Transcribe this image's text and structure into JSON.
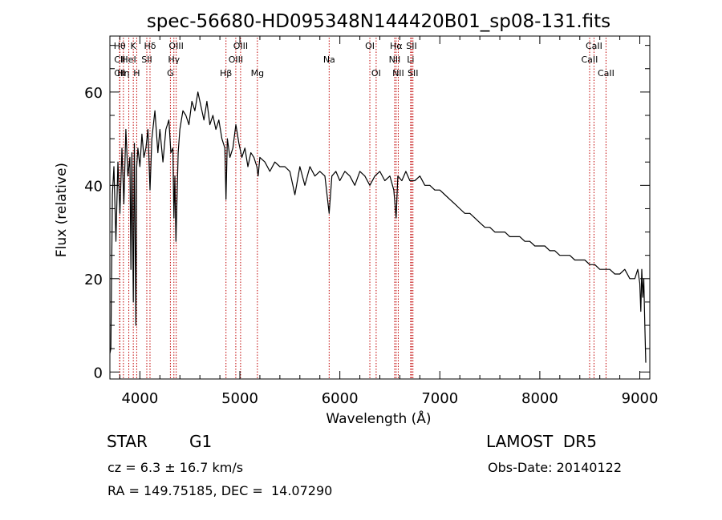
{
  "chart_data": {
    "type": "line",
    "title": "spec-56680-HD095348N144420B01_sp08-131.fits",
    "xlabel": "Wavelength (Å)",
    "ylabel": "Flux (relative)",
    "xlim": [
      3700,
      9100
    ],
    "ylim": [
      -1.5,
      72
    ],
    "x_ticks": [
      4000,
      5000,
      6000,
      7000,
      8000,
      9000
    ],
    "x_tick_labels": [
      "4000",
      "5000",
      "6000",
      "7000",
      "8000",
      "9000"
    ],
    "y_ticks": [
      0,
      20,
      40,
      60
    ],
    "y_tick_labels": [
      "0",
      "20",
      "40",
      "60"
    ],
    "grid": false,
    "series": [
      {
        "color": "#000000",
        "x": [
          3700,
          3710,
          3725,
          3740,
          3760,
          3780,
          3800,
          3820,
          3840,
          3860,
          3880,
          3900,
          3910,
          3920,
          3934,
          3945,
          3960,
          3968,
          3980,
          4000,
          4020,
          4040,
          4060,
          4080,
          4101,
          4120,
          4150,
          4180,
          4200,
          4230,
          4260,
          4290,
          4310,
          4330,
          4340,
          4350,
          4360,
          4383,
          4400,
          4430,
          4460,
          4490,
          4520,
          4550,
          4580,
          4610,
          4640,
          4670,
          4700,
          4730,
          4760,
          4790,
          4820,
          4850,
          4861,
          4875,
          4900,
          4930,
          4960,
          4990,
          5020,
          5050,
          5080,
          5110,
          5140,
          5170,
          5183,
          5200,
          5250,
          5300,
          5350,
          5400,
          5450,
          5500,
          5550,
          5600,
          5650,
          5700,
          5750,
          5800,
          5850,
          5893,
          5920,
          5960,
          6000,
          6050,
          6100,
          6150,
          6200,
          6250,
          6300,
          6350,
          6400,
          6450,
          6500,
          6540,
          6563,
          6580,
          6620,
          6660,
          6700,
          6750,
          6800,
          6850,
          6900,
          6950,
          7000,
          7050,
          7100,
          7150,
          7200,
          7250,
          7300,
          7350,
          7400,
          7450,
          7500,
          7550,
          7600,
          7650,
          7700,
          7750,
          7800,
          7850,
          7900,
          7950,
          8000,
          8050,
          8100,
          8150,
          8200,
          8250,
          8300,
          8350,
          8400,
          8450,
          8500,
          8550,
          8600,
          8650,
          8700,
          8750,
          8800,
          8850,
          8900,
          8950,
          8980,
          9000,
          9010,
          9020,
          9030,
          9040,
          9050,
          9060
        ],
        "y": [
          4,
          5,
          38,
          44,
          28,
          45,
          34,
          48,
          36,
          52,
          42,
          46,
          22,
          47,
          15,
          49,
          10,
          44,
          48,
          44,
          51,
          46,
          48,
          52,
          39,
          50,
          56,
          47,
          52,
          45,
          52,
          54,
          47,
          48,
          33,
          42,
          28,
          47,
          52,
          56,
          55,
          53,
          58,
          56,
          60,
          57,
          54,
          58,
          53,
          55,
          52,
          54,
          50,
          48,
          37,
          50,
          46,
          48,
          53,
          49,
          46,
          48,
          44,
          47,
          46,
          44,
          42,
          46,
          45,
          43,
          45,
          44,
          44,
          43,
          38,
          44,
          40,
          44,
          42,
          43,
          42,
          34,
          42,
          43,
          41,
          43,
          42,
          40,
          43,
          42,
          40,
          42,
          43,
          41,
          42,
          39,
          33,
          42,
          41,
          43,
          41,
          41,
          42,
          40,
          40,
          39,
          39,
          38,
          37,
          36,
          35,
          34,
          34,
          33,
          32,
          31,
          31,
          30,
          30,
          30,
          29,
          29,
          29,
          28,
          28,
          27,
          27,
          27,
          26,
          26,
          25,
          25,
          25,
          24,
          24,
          24,
          23,
          23,
          22,
          22,
          22,
          21,
          21,
          22,
          20,
          20,
          22,
          19,
          13,
          22,
          16,
          20,
          10,
          2
        ]
      }
    ],
    "lines": [
      {
        "label": "Hθ",
        "x": 3798,
        "row": 1
      },
      {
        "label": "CII",
        "x": 3799,
        "row": 2
      },
      {
        "label": "CII",
        "x": 3799,
        "row": 3
      },
      {
        "label": "Hη",
        "x": 3835,
        "row": 3
      },
      {
        "label": "HeI",
        "x": 3889,
        "row": 2
      },
      {
        "label": "K",
        "x": 3934,
        "row": 1
      },
      {
        "label": "H",
        "x": 3968,
        "row": 3
      },
      {
        "label": "SII",
        "x": 4069,
        "row": 2
      },
      {
        "label": "Hδ",
        "x": 4101,
        "row": 1
      },
      {
        "label": "OIII",
        "x": 4363,
        "row": 1
      },
      {
        "label": "Hγ",
        "x": 4340,
        "row": 2
      },
      {
        "label": "G",
        "x": 4305,
        "row": 3
      },
      {
        "label": "Hβ",
        "x": 4861,
        "row": 3
      },
      {
        "label": "OIII",
        "x": 4959,
        "row": 2
      },
      {
        "label": "OIII",
        "x": 5007,
        "row": 1
      },
      {
        "label": "Mg",
        "x": 5175,
        "row": 3
      },
      {
        "label": "Na",
        "x": 5893,
        "row": 2
      },
      {
        "label": "OI",
        "x": 6300,
        "row": 1
      },
      {
        "label": "OI",
        "x": 6363,
        "row": 3
      },
      {
        "label": "NII",
        "x": 6548,
        "row": 2
      },
      {
        "label": "Hα",
        "x": 6563,
        "row": 1
      },
      {
        "label": "NII",
        "x": 6584,
        "row": 3
      },
      {
        "label": "Li",
        "x": 6708,
        "row": 2
      },
      {
        "label": "SII",
        "x": 6717,
        "row": 1
      },
      {
        "label": "SII",
        "x": 6731,
        "row": 3
      },
      {
        "label": "CaII",
        "x": 8498,
        "row": 2
      },
      {
        "label": "CaII",
        "x": 8542,
        "row": 1
      },
      {
        "label": "CaII",
        "x": 8662,
        "row": 3
      }
    ]
  },
  "info": {
    "class": "STAR",
    "subclass": "G1",
    "survey": "LAMOST  DR5",
    "cz": "cz = 6.3 ± 16.7 km/s",
    "obsdate": "Obs-Date: 20140122",
    "radec": "RA = 149.75185, DEC =  14.07290"
  }
}
